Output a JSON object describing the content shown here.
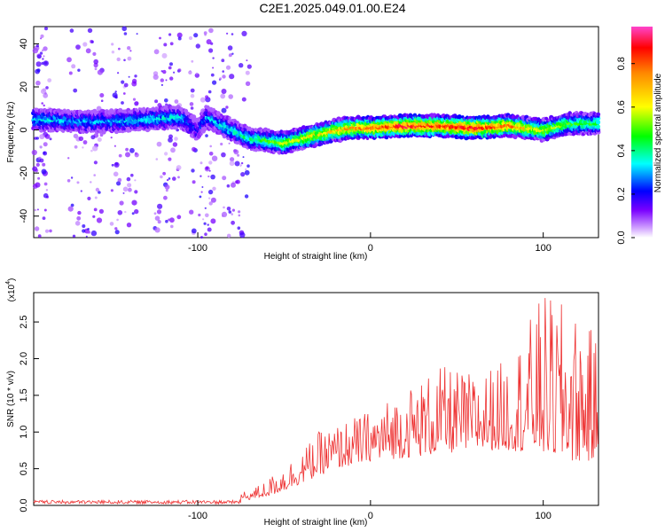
{
  "title": "C2E1.2025.049.01.00.E24",
  "chart_data": [
    {
      "type": "heatmap",
      "xlabel": "Height of straight line (km)",
      "ylabel": "Frequency (Hz)",
      "xlim": [
        -195,
        132
      ],
      "ylim": [
        -50,
        48
      ],
      "x_ticks": [
        "-100",
        "0",
        "100"
      ],
      "y_ticks": [
        "-40",
        "-20",
        "0",
        "20",
        "40"
      ],
      "colorbar": {
        "label": "Normalized spectral amplitude",
        "range": [
          0.0,
          0.97
        ],
        "ticks": [
          "0.0",
          "0.2",
          "0.4",
          "0.6",
          "0.8"
        ],
        "colors": [
          "#ffffff",
          "#9966ff",
          "#6600ff",
          "#0000ff",
          "#00ffff",
          "#00ff00",
          "#ffff00",
          "#ff8800",
          "#ff0000",
          "#ff44cc"
        ]
      },
      "ridge": {
        "x": [
          -195,
          -170,
          -150,
          -130,
          -110,
          -100,
          -95,
          -80,
          -70,
          -60,
          -50,
          -40,
          -30,
          -20,
          -10,
          0,
          20,
          40,
          60,
          80,
          100,
          115,
          132
        ],
        "frequency": [
          5,
          4,
          4,
          5,
          6,
          0,
          6,
          0,
          -4,
          -5,
          -6,
          -4,
          -2,
          0,
          1,
          1,
          2,
          2,
          1,
          2,
          0,
          3,
          3
        ],
        "peak_amplitude": [
          0.35,
          0.3,
          0.3,
          0.35,
          0.35,
          0.2,
          0.3,
          0.35,
          0.4,
          0.5,
          0.55,
          0.6,
          0.65,
          0.7,
          0.75,
          0.8,
          0.9,
          0.85,
          0.9,
          0.8,
          0.6,
          0.5,
          0.5
        ]
      }
    },
    {
      "type": "line",
      "xlabel": "Height of straight line (km)",
      "ylabel": "SNR (10 * v/v)",
      "y_multiplier": "(x10",
      "y_multiplier_exp": "4",
      "xlim": [
        -195,
        132
      ],
      "ylim": [
        0,
        2.9
      ],
      "x_ticks": [
        "-100",
        "0",
        "100"
      ],
      "y_ticks": [
        "0.0",
        "0.5",
        "1.0",
        "1.5",
        "2.0",
        "2.5"
      ],
      "series": [
        {
          "color": "#ee3333",
          "envelope_x": [
            -195,
            -100,
            -70,
            -60,
            -50,
            -40,
            -30,
            -20,
            -10,
            0,
            20,
            40,
            60,
            80,
            100,
            115,
            132
          ],
          "envelope_baseline": [
            0.03,
            0.05,
            0.08,
            0.12,
            0.2,
            0.3,
            0.4,
            0.5,
            0.55,
            0.6,
            0.65,
            0.7,
            0.75,
            0.75,
            0.7,
            0.6,
            0.6
          ],
          "envelope_peak": [
            0.08,
            0.12,
            0.2,
            0.35,
            0.55,
            0.75,
            1.0,
            1.1,
            1.2,
            1.3,
            1.6,
            1.9,
            1.8,
            2.0,
            2.9,
            2.7,
            2.3
          ]
        }
      ]
    }
  ]
}
